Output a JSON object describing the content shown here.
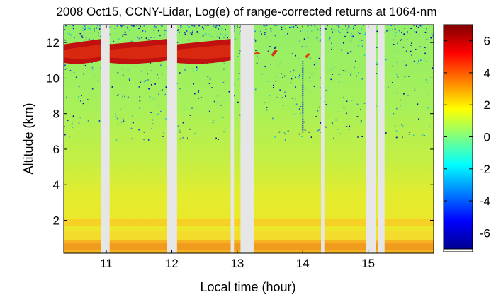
{
  "chart_data": {
    "type": "heatmap",
    "title": "2008 Oct15, CCNY-Lidar, Log(e) of range-corrected returns at 1064-nm",
    "xlabel": "Local time (hour)",
    "ylabel": "Altitude (km)",
    "xlim": [
      10.35,
      16.0
    ],
    "ylim": [
      0.15,
      13.0
    ],
    "xticks": [
      11,
      12,
      13,
      14,
      15
    ],
    "yticks": [
      2,
      4,
      6,
      8,
      10,
      12
    ],
    "colorbar": {
      "range": [
        -7,
        7
      ],
      "ticks": [
        6,
        4,
        2,
        0,
        -2,
        -4,
        -6
      ],
      "tick_labels": [
        "6",
        "4",
        "2",
        "0",
        "-2",
        "-4",
        "-6"
      ],
      "colormap": "jet"
    },
    "data_gaps_hours": [
      [
        10.92,
        11.05
      ],
      [
        11.93,
        12.08
      ],
      [
        12.9,
        12.95
      ],
      [
        13.05,
        13.25
      ],
      [
        14.28,
        14.33
      ],
      [
        14.97,
        15.12
      ],
      [
        15.15,
        15.25
      ]
    ],
    "layers": [
      {
        "type": "cirrus_cloud",
        "altitude_km": [
          10.8,
          12.3
        ],
        "log_value": 6
      },
      {
        "type": "aerosol_upper",
        "altitude_km": [
          1.7,
          2.1
        ],
        "log_value": 3
      },
      {
        "type": "boundary_layer",
        "altitude_km": [
          0.3,
          0.9
        ],
        "log_value": 4
      },
      {
        "type": "free_troposphere",
        "altitude_km": [
          2.5,
          10.5
        ],
        "log_value": 1
      }
    ],
    "grid": false
  }
}
